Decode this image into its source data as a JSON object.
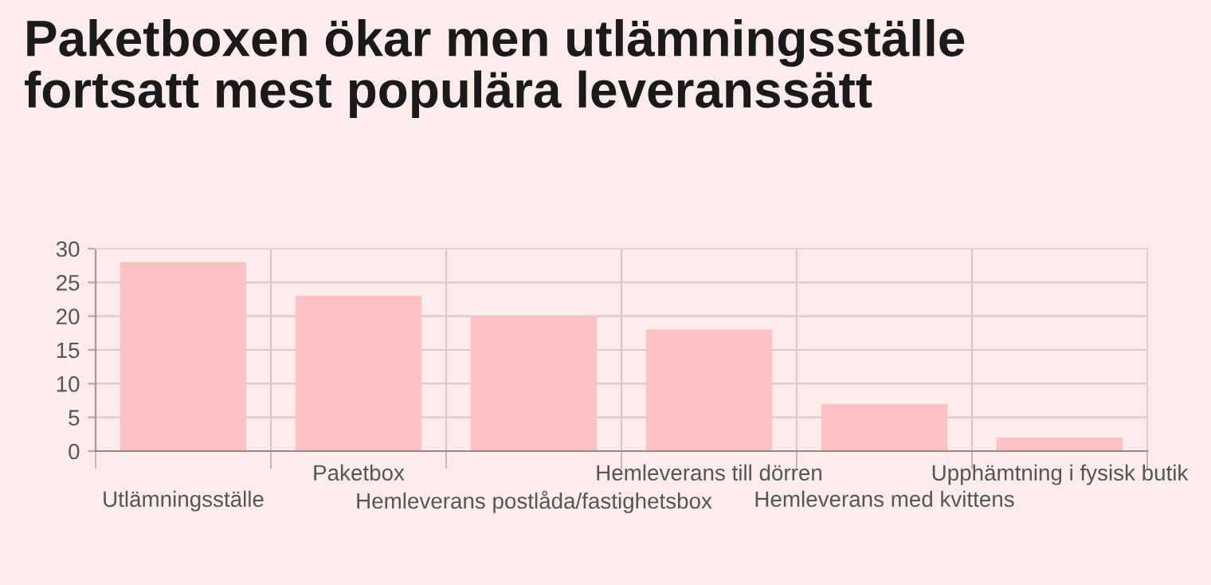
{
  "chart_data": {
    "type": "bar",
    "title": "Paketboxen ökar men utlämningsställe\nfortsatt mest populära leveranssätt",
    "categories": [
      "Utlämningsställe",
      "Paketbox",
      "Hemleverans postlåda/fastighetsbox",
      "Hemleverans till dörren",
      "Hemleverans med kvittens",
      "Upphämtning i fysisk butik"
    ],
    "values": [
      28,
      23,
      20,
      18,
      7,
      2
    ],
    "color": "#fbc0c0",
    "ylim": [
      0,
      30
    ],
    "yticks": [
      0,
      5,
      10,
      15,
      20,
      25,
      30
    ],
    "grid": true,
    "legend": false
  }
}
